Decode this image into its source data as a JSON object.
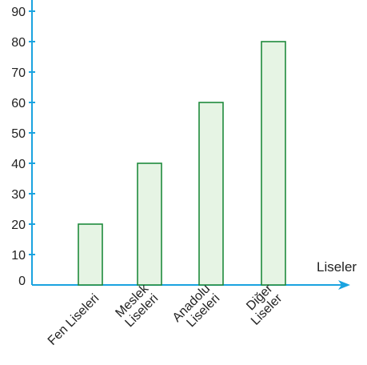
{
  "chart_data": {
    "type": "bar",
    "title": "",
    "xlabel": "Liseler",
    "ylabel": "",
    "categories": [
      [
        "Fen Liseleri"
      ],
      [
        "Meslek",
        "Liseleri"
      ],
      [
        "Anadolu",
        "Liseleri"
      ],
      [
        "Diğer",
        "Liseler"
      ]
    ],
    "values": [
      20,
      40,
      60,
      80
    ],
    "yticks": [
      0,
      10,
      20,
      30,
      40,
      50,
      60,
      70,
      80,
      90
    ],
    "ylim": [
      0,
      90
    ],
    "grid": false,
    "legend": "none",
    "colors": {
      "axis": "#1aa3e0",
      "bar_fill": "#e6f4e4",
      "bar_stroke": "#1f8a3c",
      "text": "#222222"
    }
  }
}
